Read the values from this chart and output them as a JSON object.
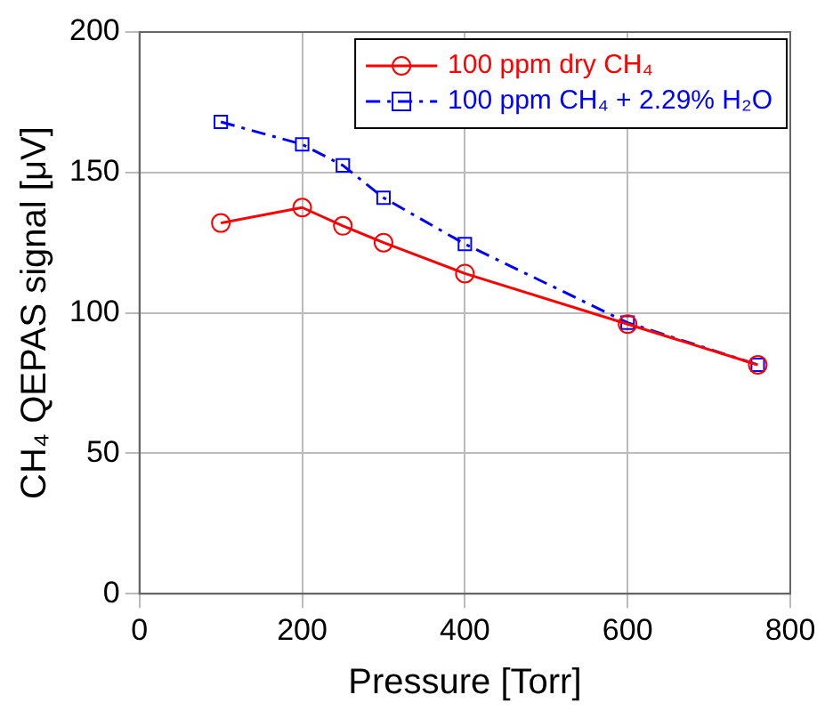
{
  "chart_data": {
    "type": "line",
    "xlabel": "Pressure [Torr]",
    "ylabel": "CH₄ QEPAS signal [μV]",
    "x": [
      100,
      200,
      250,
      300,
      400,
      600,
      760
    ],
    "series": [
      {
        "name": "100 ppm dry CH₄",
        "color": "#ff0000",
        "marker": "circle",
        "line_style": "solid",
        "values": [
          132,
          137.5,
          131,
          125,
          114,
          96,
          81.5
        ]
      },
      {
        "name": "100 ppm CH₄ + 2.29% H₂O",
        "color": "#0000ff",
        "marker": "square",
        "line_style": "dashed",
        "values": [
          168,
          160,
          152.5,
          141,
          124.5,
          96.5,
          81.5
        ]
      }
    ],
    "xlim": [
      0,
      800
    ],
    "xticks": [
      0,
      200,
      400,
      600,
      800
    ],
    "ylim": [
      0,
      200
    ],
    "yticks": [
      0,
      50,
      100,
      150,
      200
    ],
    "grid": true,
    "legend": "top right"
  }
}
